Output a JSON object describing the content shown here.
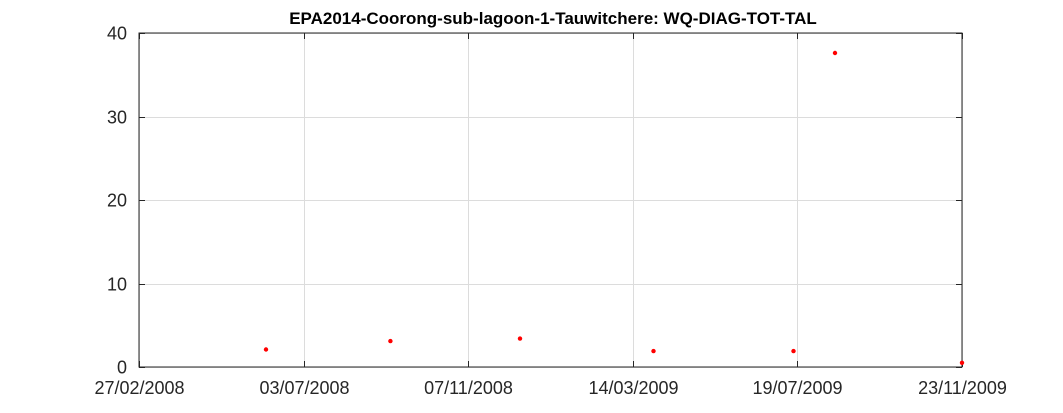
{
  "chart_data": {
    "type": "scatter",
    "title": "EPA2014-Coorong-sub-lagoon-1-Tauwitchere: WQ-DIAG-TOT-TAL",
    "xlabel": "",
    "ylabel": "",
    "x_type": "date",
    "xlim": [
      "2008-02-27",
      "2009-11-23"
    ],
    "ylim": [
      0,
      40
    ],
    "x_ticks": [
      "2008-02-27",
      "2008-07-03",
      "2008-11-07",
      "2009-03-14",
      "2009-07-19",
      "2009-11-23"
    ],
    "x_tick_labels": [
      "27/02/2008",
      "03/07/2008",
      "07/11/2008",
      "14/03/2009",
      "19/07/2009",
      "23/11/2009"
    ],
    "y_ticks": [
      0,
      10,
      20,
      30,
      40
    ],
    "y_tick_labels": [
      "0",
      "10",
      "20",
      "30",
      "40"
    ],
    "grid": true,
    "legend": "none",
    "series": [
      {
        "color": "#ff0000",
        "x": [
          "2008-06-04",
          "2008-09-08",
          "2008-12-17",
          "2009-03-30",
          "2009-07-16",
          "2009-08-17",
          "2009-11-23"
        ],
        "y": [
          2.1,
          3.1,
          3.4,
          1.9,
          1.9,
          37.6,
          0.5
        ]
      }
    ]
  }
}
